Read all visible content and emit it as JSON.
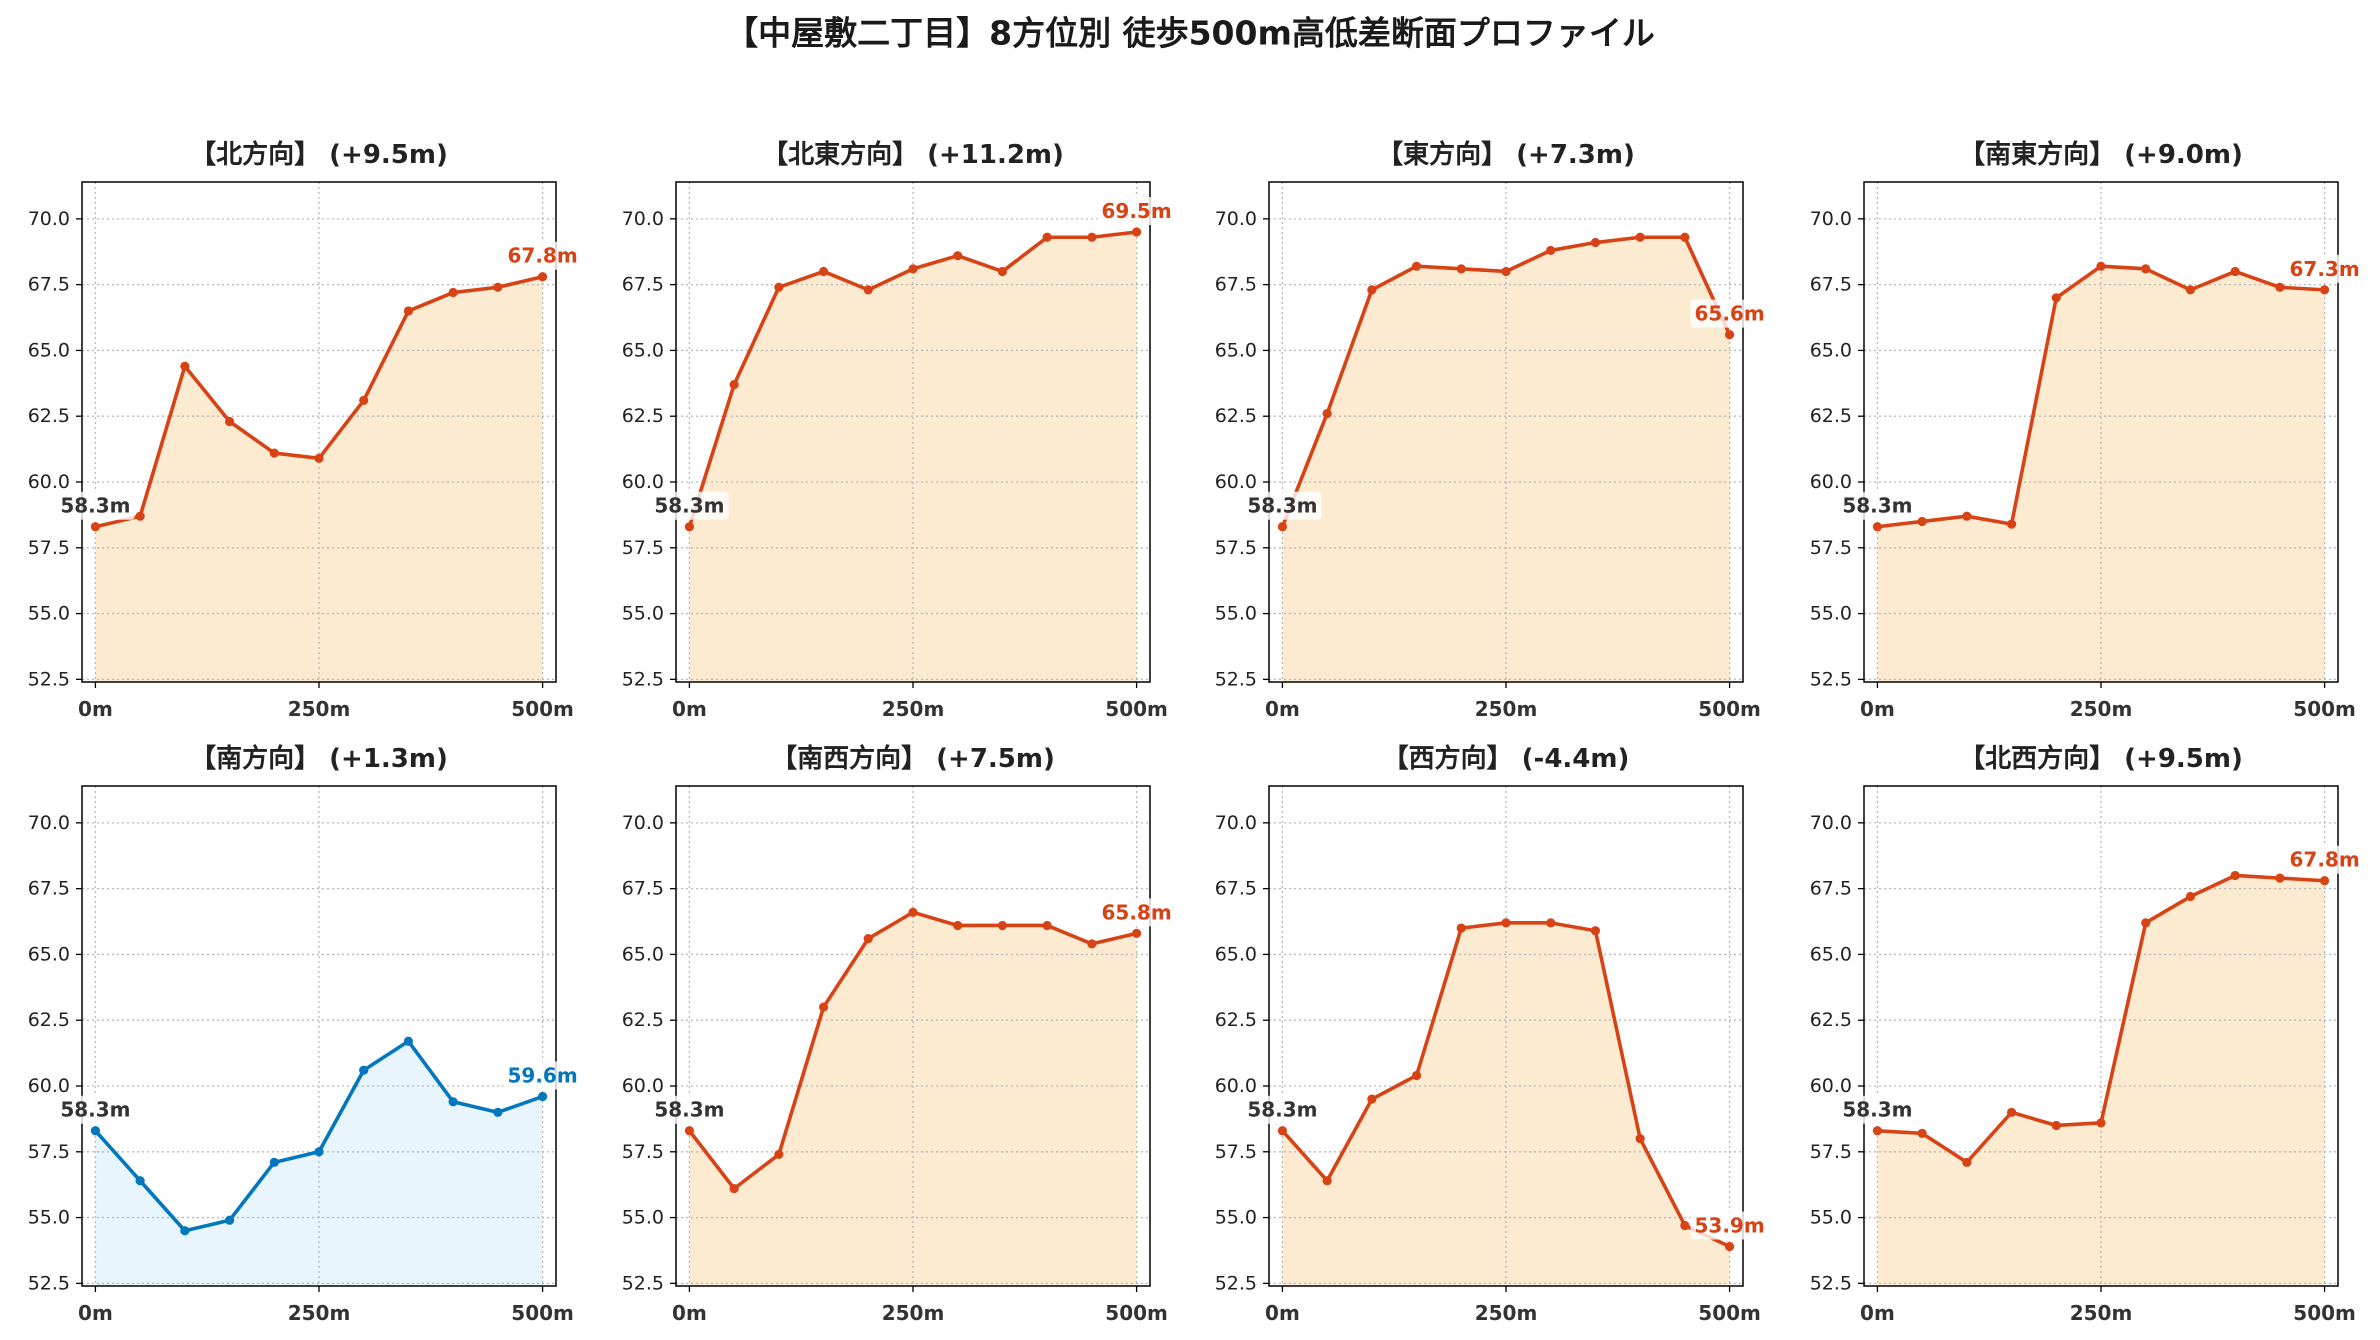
{
  "title": "【中屋敷二丁目】8方位別 徒歩500m高低差断面プロファイル",
  "start_label_color": "#333333",
  "chart_data": [
    {
      "type": "area",
      "title": "【北方向】 (+9.5m)",
      "x": [
        0,
        50,
        100,
        150,
        200,
        250,
        300,
        350,
        400,
        450,
        500
      ],
      "y": [
        58.3,
        58.7,
        64.4,
        62.3,
        61.1,
        60.9,
        63.1,
        66.5,
        67.2,
        67.4,
        67.8
      ],
      "xticks": [
        0,
        250,
        500
      ],
      "xticklabels": [
        "0m",
        "250m",
        "500m"
      ],
      "yticks": [
        52.5,
        55.0,
        57.5,
        60.0,
        62.5,
        65.0,
        67.5,
        70.0
      ],
      "yticklabels": [
        "52.5",
        "55.0",
        "57.5",
        "60.0",
        "62.5",
        "65.0",
        "67.5",
        "70.0"
      ],
      "xlim": [
        -15,
        515
      ],
      "ylim": [
        52.4,
        71.4
      ],
      "grid": true,
      "line_color": "#d84315",
      "fill_color": "#fdebd1",
      "start_label": "58.3m",
      "end_label": "67.8m"
    },
    {
      "type": "area",
      "title": "【北東方向】 (+11.2m)",
      "x": [
        0,
        50,
        100,
        150,
        200,
        250,
        300,
        350,
        400,
        450,
        500
      ],
      "y": [
        58.3,
        63.7,
        67.4,
        68.0,
        67.3,
        68.1,
        68.6,
        68.0,
        69.3,
        69.3,
        69.5
      ],
      "xticks": [
        0,
        250,
        500
      ],
      "xticklabels": [
        "0m",
        "250m",
        "500m"
      ],
      "yticks": [
        52.5,
        55.0,
        57.5,
        60.0,
        62.5,
        65.0,
        67.5,
        70.0
      ],
      "yticklabels": [
        "52.5",
        "55.0",
        "57.5",
        "60.0",
        "62.5",
        "65.0",
        "67.5",
        "70.0"
      ],
      "xlim": [
        -15,
        515
      ],
      "ylim": [
        52.4,
        71.4
      ],
      "grid": true,
      "line_color": "#d84315",
      "fill_color": "#fdebd1",
      "start_label": "58.3m",
      "end_label": "69.5m"
    },
    {
      "type": "area",
      "title": "【東方向】 (+7.3m)",
      "x": [
        0,
        50,
        100,
        150,
        200,
        250,
        300,
        350,
        400,
        450,
        500
      ],
      "y": [
        58.3,
        62.6,
        67.3,
        68.2,
        68.1,
        68.0,
        68.8,
        69.1,
        69.3,
        69.3,
        65.6
      ],
      "xticks": [
        0,
        250,
        500
      ],
      "xticklabels": [
        "0m",
        "250m",
        "500m"
      ],
      "yticks": [
        52.5,
        55.0,
        57.5,
        60.0,
        62.5,
        65.0,
        67.5,
        70.0
      ],
      "yticklabels": [
        "52.5",
        "55.0",
        "57.5",
        "60.0",
        "62.5",
        "65.0",
        "67.5",
        "70.0"
      ],
      "xlim": [
        -15,
        515
      ],
      "ylim": [
        52.4,
        71.4
      ],
      "grid": true,
      "line_color": "#d84315",
      "fill_color": "#fdebd1",
      "start_label": "58.3m",
      "end_label": "65.6m"
    },
    {
      "type": "area",
      "title": "【南東方向】 (+9.0m)",
      "x": [
        0,
        50,
        100,
        150,
        200,
        250,
        300,
        350,
        400,
        450,
        500
      ],
      "y": [
        58.3,
        58.5,
        58.7,
        58.4,
        67.0,
        68.2,
        68.1,
        67.3,
        68.0,
        67.4,
        67.3
      ],
      "xticks": [
        0,
        250,
        500
      ],
      "xticklabels": [
        "0m",
        "250m",
        "500m"
      ],
      "yticks": [
        52.5,
        55.0,
        57.5,
        60.0,
        62.5,
        65.0,
        67.5,
        70.0
      ],
      "yticklabels": [
        "52.5",
        "55.0",
        "57.5",
        "60.0",
        "62.5",
        "65.0",
        "67.5",
        "70.0"
      ],
      "xlim": [
        -15,
        515
      ],
      "ylim": [
        52.4,
        71.4
      ],
      "grid": true,
      "line_color": "#d84315",
      "fill_color": "#fdebd1",
      "start_label": "58.3m",
      "end_label": "67.3m"
    },
    {
      "type": "area",
      "title": "【南方向】 (+1.3m)",
      "x": [
        0,
        50,
        100,
        150,
        200,
        250,
        300,
        350,
        400,
        450,
        500
      ],
      "y": [
        58.3,
        56.4,
        54.5,
        54.9,
        57.1,
        57.5,
        60.6,
        61.7,
        59.4,
        59.0,
        59.6
      ],
      "xticks": [
        0,
        250,
        500
      ],
      "xticklabels": [
        "0m",
        "250m",
        "500m"
      ],
      "yticks": [
        52.5,
        55.0,
        57.5,
        60.0,
        62.5,
        65.0,
        67.5,
        70.0
      ],
      "yticklabels": [
        "52.5",
        "55.0",
        "57.5",
        "60.0",
        "62.5",
        "65.0",
        "67.5",
        "70.0"
      ],
      "xlim": [
        -15,
        515
      ],
      "ylim": [
        52.4,
        71.4
      ],
      "grid": true,
      "line_color": "#0277bd",
      "fill_color": "#e8f5fc",
      "start_label": "58.3m",
      "end_label": "59.6m"
    },
    {
      "type": "area",
      "title": "【南西方向】 (+7.5m)",
      "x": [
        0,
        50,
        100,
        150,
        200,
        250,
        300,
        350,
        400,
        450,
        500
      ],
      "y": [
        58.3,
        56.1,
        57.4,
        63.0,
        65.6,
        66.6,
        66.1,
        66.1,
        66.1,
        65.4,
        65.8
      ],
      "xticks": [
        0,
        250,
        500
      ],
      "xticklabels": [
        "0m",
        "250m",
        "500m"
      ],
      "yticks": [
        52.5,
        55.0,
        57.5,
        60.0,
        62.5,
        65.0,
        67.5,
        70.0
      ],
      "yticklabels": [
        "52.5",
        "55.0",
        "57.5",
        "60.0",
        "62.5",
        "65.0",
        "67.5",
        "70.0"
      ],
      "xlim": [
        -15,
        515
      ],
      "ylim": [
        52.4,
        71.4
      ],
      "grid": true,
      "line_color": "#d84315",
      "fill_color": "#fdebd1",
      "start_label": "58.3m",
      "end_label": "65.8m"
    },
    {
      "type": "area",
      "title": "【西方向】 (-4.4m)",
      "x": [
        0,
        50,
        100,
        150,
        200,
        250,
        300,
        350,
        400,
        450,
        500
      ],
      "y": [
        58.3,
        56.4,
        59.5,
        60.4,
        66.0,
        66.2,
        66.2,
        65.9,
        58.0,
        54.7,
        53.9
      ],
      "xticks": [
        0,
        250,
        500
      ],
      "xticklabels": [
        "0m",
        "250m",
        "500m"
      ],
      "yticks": [
        52.5,
        55.0,
        57.5,
        60.0,
        62.5,
        65.0,
        67.5,
        70.0
      ],
      "yticklabels": [
        "52.5",
        "55.0",
        "57.5",
        "60.0",
        "62.5",
        "65.0",
        "67.5",
        "70.0"
      ],
      "xlim": [
        -15,
        515
      ],
      "ylim": [
        52.4,
        71.4
      ],
      "grid": true,
      "line_color": "#d84315",
      "fill_color": "#fdebd1",
      "start_label": "58.3m",
      "end_label": "53.9m"
    },
    {
      "type": "area",
      "title": "【北西方向】 (+9.5m)",
      "x": [
        0,
        50,
        100,
        150,
        200,
        250,
        300,
        350,
        400,
        450,
        500
      ],
      "y": [
        58.3,
        58.2,
        57.1,
        59.0,
        58.5,
        58.6,
        66.2,
        67.2,
        68.0,
        67.9,
        67.8
      ],
      "xticks": [
        0,
        250,
        500
      ],
      "xticklabels": [
        "0m",
        "250m",
        "500m"
      ],
      "yticks": [
        52.5,
        55.0,
        57.5,
        60.0,
        62.5,
        65.0,
        67.5,
        70.0
      ],
      "yticklabels": [
        "52.5",
        "55.0",
        "57.5",
        "60.0",
        "62.5",
        "65.0",
        "67.5",
        "70.0"
      ],
      "xlim": [
        -15,
        515
      ],
      "ylim": [
        52.4,
        71.4
      ],
      "grid": true,
      "line_color": "#d84315",
      "fill_color": "#fdebd1",
      "start_label": "58.3m",
      "end_label": "67.8m"
    }
  ]
}
